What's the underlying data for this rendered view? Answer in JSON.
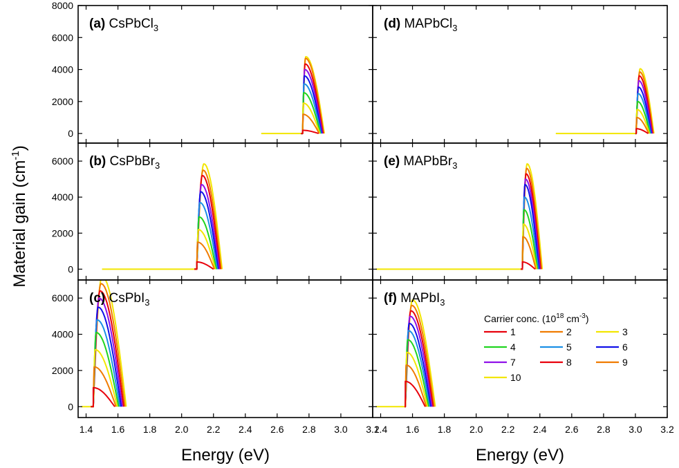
{
  "chart_data": {
    "type": "line",
    "xlabel": "Energy (eV)",
    "ylabel": "Material gain (cm",
    "ylabel_sup": "-1",
    "ylabel_tail": ")",
    "xlim": [
      1.35,
      3.2
    ],
    "x_ticks": [
      "1.4",
      "1.6",
      "1.8",
      "2.0",
      "2.2",
      "2.4",
      "2.6",
      "2.8",
      "3.0",
      "3.2"
    ],
    "legend": {
      "title": "Carrier conc. (10",
      "title_sup1": "18",
      "title_mid": " cm",
      "title_sup2": "-3",
      "title_tail": ")",
      "placement": "inside panel (f), right",
      "entries": [
        "1",
        "2",
        "3",
        "4",
        "5",
        "6",
        "7",
        "8",
        "9",
        "10"
      ]
    },
    "series_colors": [
      "#e8000b",
      "#f07b00",
      "#f2e600",
      "#1fd41f",
      "#1a8fe6",
      "#1010e8",
      "#8f10e8",
      "#e8000b",
      "#f07b00",
      "#f2e600"
    ],
    "panels": [
      {
        "id": "a",
        "label": "(a)",
        "name": "CsPbCl",
        "sub": "3",
        "col": 0,
        "row": 0,
        "ylim": [
          -600,
          8000
        ],
        "y_ticks": [
          "0",
          "2000",
          "4000",
          "6000",
          "8000"
        ],
        "flat_start": 2.5,
        "edge": 2.75,
        "peak_start": 2.76,
        "peak_end": 2.78,
        "right_start": 2.86,
        "right_step": 0.004,
        "peaks": [
          200,
          1200,
          1900,
          2550,
          3100,
          3600,
          4000,
          4350,
          4700,
          4800
        ]
      },
      {
        "id": "b",
        "label": "(b)",
        "name": "CsPbBr",
        "sub": "3",
        "col": 0,
        "row": 1,
        "ylim": [
          -600,
          7000
        ],
        "y_ticks": [
          "0",
          "2000",
          "4000",
          "6000"
        ],
        "flat_start": 1.5,
        "edge": 2.08,
        "peak_start": 2.095,
        "peak_end": 2.14,
        "right_start": 2.2,
        "right_step": 0.006,
        "peaks": [
          400,
          1500,
          2200,
          2900,
          3700,
          4300,
          4700,
          5200,
          5500,
          5850
        ]
      },
      {
        "id": "c",
        "label": "(c)",
        "name": "CsPbI",
        "sub": "3",
        "col": 0,
        "row": 2,
        "ylim": [
          -600,
          7000
        ],
        "y_ticks": [
          "0",
          "2000",
          "4000",
          "6000"
        ],
        "flat_start": 1.37,
        "edge": 1.43,
        "peak_start": 1.445,
        "peak_end": 1.5,
        "right_start": 1.58,
        "right_step": 0.008,
        "peaks": [
          1050,
          2200,
          3150,
          4100,
          4800,
          5500,
          6000,
          6400,
          6800,
          7200
        ]
      },
      {
        "id": "d",
        "label": "(d)",
        "name": "MAPbCl",
        "sub": "3",
        "col": 1,
        "row": 0,
        "ylim": [
          -600,
          8000
        ],
        "y_ticks": [
          "0",
          "2000",
          "4000",
          "6000",
          "8000"
        ],
        "flat_start": 2.5,
        "edge": 3.0,
        "peak_start": 3.005,
        "peak_end": 3.03,
        "right_start": 3.08,
        "right_step": 0.004,
        "peaks": [
          300,
          1000,
          1500,
          2000,
          2500,
          2900,
          3300,
          3600,
          3850,
          4050
        ]
      },
      {
        "id": "e",
        "label": "(e)",
        "name": "MAPbBr",
        "sub": "3",
        "col": 1,
        "row": 1,
        "ylim": [
          -600,
          7000
        ],
        "y_ticks": [
          "0",
          "2000",
          "4000",
          "6000"
        ],
        "flat_start": 1.37,
        "edge": 2.28,
        "peak_start": 2.29,
        "peak_end": 2.32,
        "right_start": 2.37,
        "right_step": 0.005,
        "peaks": [
          400,
          1800,
          2500,
          3300,
          4000,
          4700,
          5000,
          5300,
          5600,
          5850
        ]
      },
      {
        "id": "f",
        "label": "(f)",
        "name": "MAPbI",
        "sub": "3",
        "col": 1,
        "row": 2,
        "ylim": [
          -600,
          7000
        ],
        "y_ticks": [
          "0",
          "2000",
          "4000",
          "6000"
        ],
        "flat_start": 1.37,
        "edge": 1.55,
        "peak_start": 1.555,
        "peak_end": 1.6,
        "right_start": 1.68,
        "right_step": 0.007,
        "peaks": [
          1400,
          2300,
          3000,
          3700,
          4200,
          4600,
          5000,
          5300,
          5600,
          5900
        ]
      }
    ]
  }
}
